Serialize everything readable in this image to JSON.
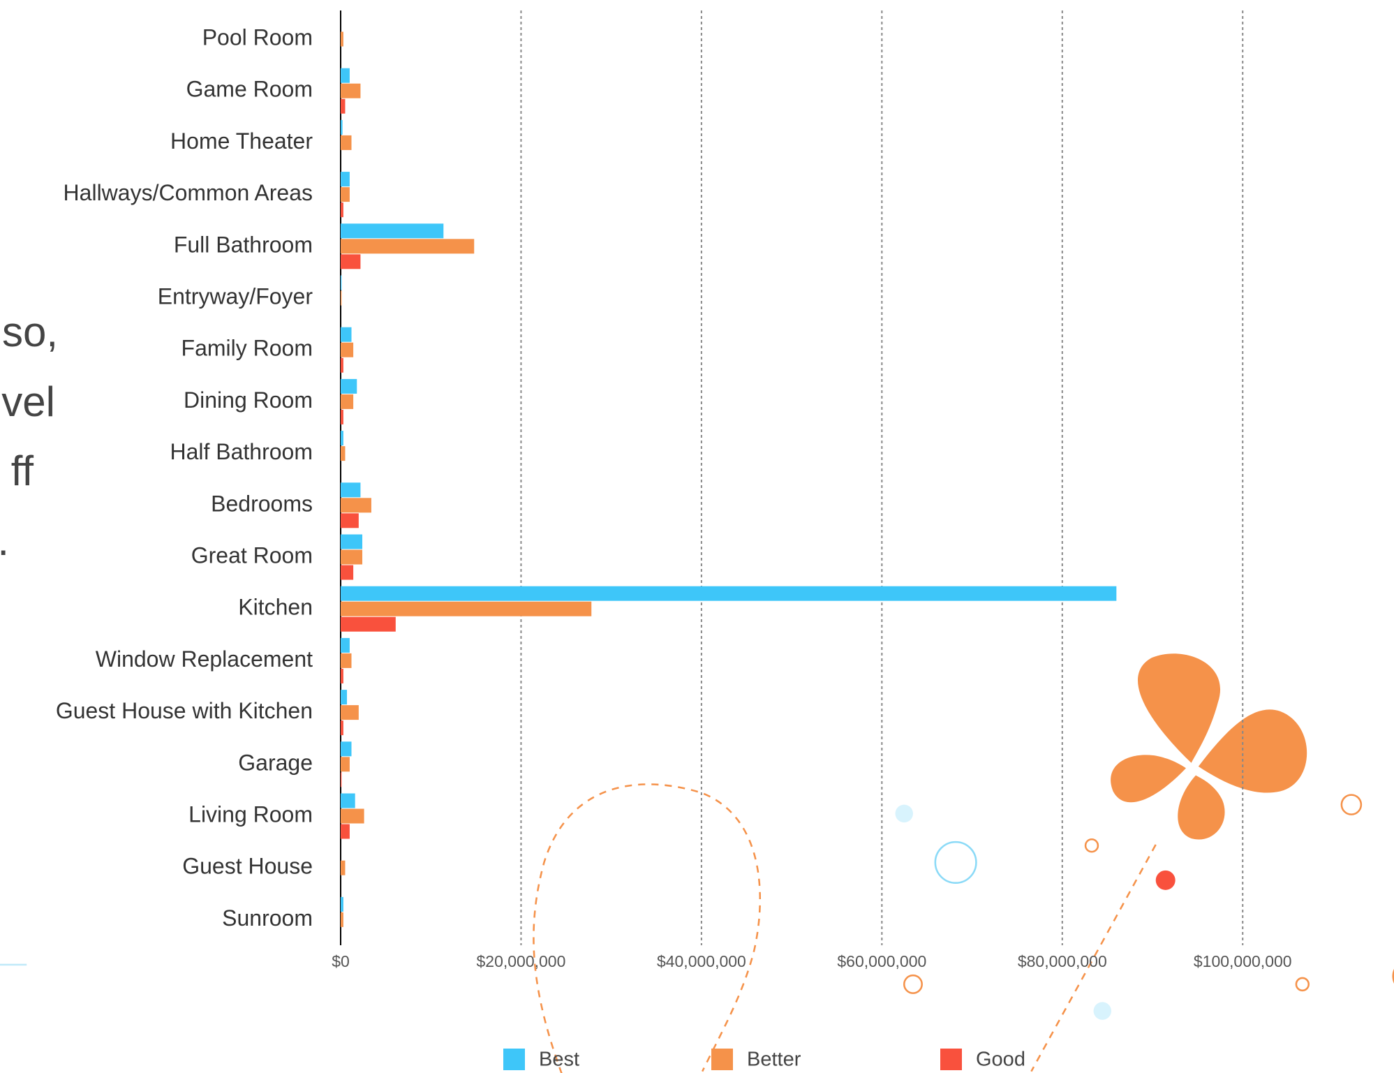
{
  "chart_data": {
    "type": "bar",
    "orientation": "horizontal",
    "categories": [
      "Pool Room",
      "Game Room",
      "Home Theater",
      "Hallways/Common Areas",
      "Full Bathroom",
      "Entryway/Foyer",
      "Family Room",
      "Dining Room",
      "Half Bathroom",
      "Bedrooms",
      "Great Room",
      "Kitchen",
      "Window Replacement",
      "Guest House with Kitchen",
      "Garage",
      "Living Room",
      "Guest House",
      "Sunroom"
    ],
    "series": [
      {
        "name": "Best",
        "color": "#3ec6f9",
        "values": [
          0,
          1000000,
          200000,
          1000000,
          11400000,
          100000,
          1200000,
          1800000,
          300000,
          2200000,
          2400000,
          86000000,
          1000000,
          700000,
          1200000,
          1600000,
          0,
          300000
        ]
      },
      {
        "name": "Better",
        "color": "#f5924a",
        "values": [
          300000,
          2200000,
          1200000,
          1000000,
          14800000,
          100000,
          1400000,
          1400000,
          500000,
          3400000,
          2400000,
          27800000,
          1200000,
          2000000,
          1000000,
          2600000,
          500000,
          300000
        ]
      },
      {
        "name": "Good",
        "color": "#f9513d",
        "values": [
          0,
          500000,
          0,
          300000,
          2200000,
          0,
          300000,
          300000,
          0,
          2000000,
          1400000,
          6100000,
          300000,
          300000,
          100000,
          1000000,
          0,
          0
        ]
      }
    ],
    "xlim": [
      0,
      116000000
    ],
    "xticks": [
      {
        "value": 0,
        "label": "$0"
      },
      {
        "value": 20000000,
        "label": "$20,000,000"
      },
      {
        "value": 40000000,
        "label": "$40,000,000"
      },
      {
        "value": 60000000,
        "label": "$60,000,000"
      },
      {
        "value": 80000000,
        "label": "$80,000,000"
      },
      {
        "value": 100000000,
        "label": "$100,000,000"
      }
    ],
    "grid": true,
    "legend": "bottom"
  },
  "background_text": [
    "lso,",
    "vel",
    "ff",
    "."
  ]
}
